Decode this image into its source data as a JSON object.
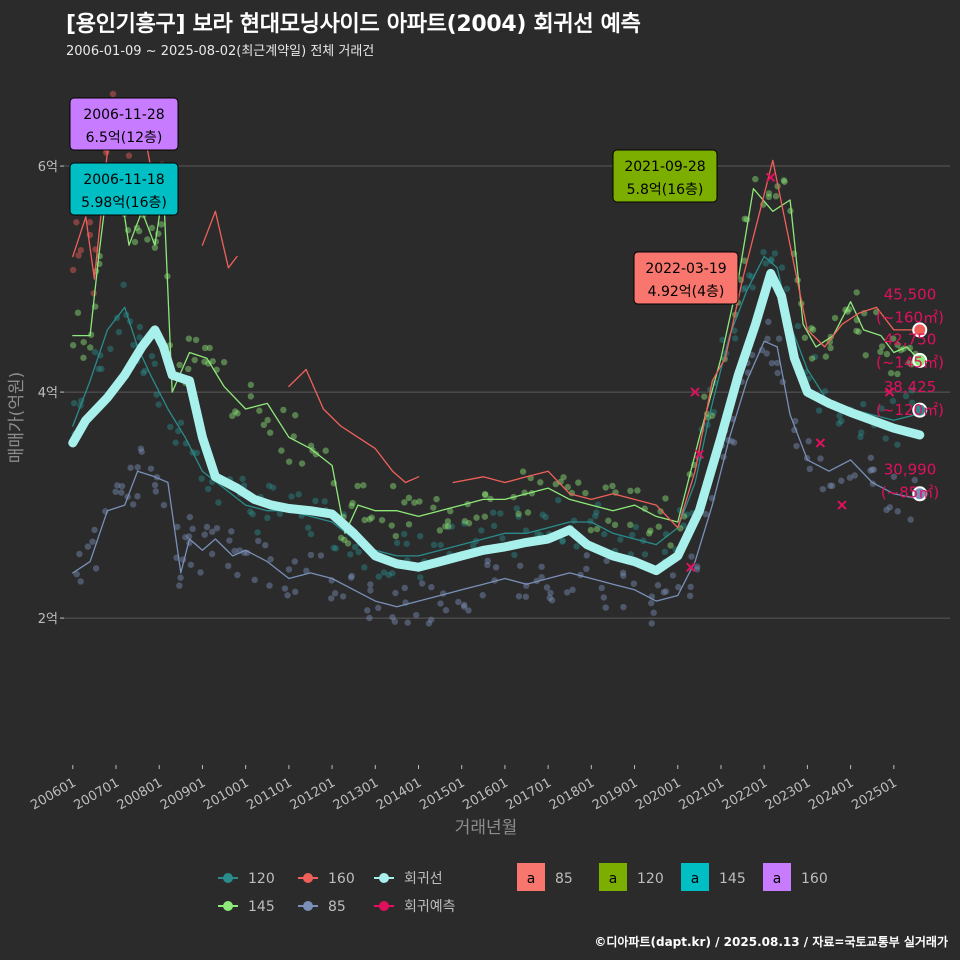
{
  "header": {
    "title": "[용인기흥구] 보라 현대모닝사이드 아파트(2004) 회귀선 예측",
    "subtitle": "2006-01-09 ~ 2025-08-02(최근계약일) 전체 거래건"
  },
  "footer": {
    "credit": "©디아파트(dapt.kr) / 2025.08.13 / 자료=국토교통부 실거래가"
  },
  "colors": {
    "background": "#2b2b2b",
    "grid": "#5a5a5a",
    "s120": "#2a8c8c",
    "s145": "#8ee87a",
    "s160": "#f0605a",
    "s85": "#7a90b8",
    "regression": "#a8f0ec",
    "forecast": "#e0105e"
  },
  "chart_data": {
    "type": "line",
    "xlabel": "거래년월",
    "ylabel": "매매가(억원)",
    "x_ticks": [
      "200601",
      "200701",
      "200801",
      "200901",
      "201001",
      "201101",
      "201201",
      "201301",
      "201401",
      "201501",
      "201601",
      "201701",
      "201801",
      "201901",
      "202001",
      "202101",
      "202201",
      "202301",
      "202401",
      "202501"
    ],
    "y_ticks": [
      {
        "value": 2,
        "label": "2억"
      },
      {
        "value": 4,
        "label": "4억"
      },
      {
        "value": 6,
        "label": "6억"
      }
    ],
    "xlim": [
      2005.75,
      2026.3
    ],
    "ylim": [
      0.7,
      6.85
    ],
    "grid": true,
    "series": [
      {
        "name": "120",
        "color": "#2a8c8c",
        "width": 1.3,
        "points": [
          [
            2006.0,
            3.7
          ],
          [
            2006.4,
            4.1
          ],
          [
            2006.8,
            4.55
          ],
          [
            2007.2,
            4.75
          ],
          [
            2007.5,
            4.4
          ],
          [
            2007.8,
            4.15
          ],
          [
            2008.2,
            3.85
          ],
          [
            2008.6,
            3.6
          ],
          [
            2009.0,
            3.3
          ],
          [
            2009.5,
            3.15
          ],
          [
            2010.0,
            3.0
          ],
          [
            2010.5,
            2.95
          ],
          [
            2011.0,
            2.95
          ],
          [
            2011.5,
            2.9
          ],
          [
            2012.0,
            2.85
          ],
          [
            2012.5,
            2.7
          ],
          [
            2013.0,
            2.6
          ],
          [
            2013.5,
            2.55
          ],
          [
            2014.0,
            2.55
          ],
          [
            2014.5,
            2.6
          ],
          [
            2015.0,
            2.65
          ],
          [
            2015.5,
            2.7
          ],
          [
            2016.0,
            2.75
          ],
          [
            2016.5,
            2.75
          ],
          [
            2017.0,
            2.8
          ],
          [
            2017.5,
            2.85
          ],
          [
            2018.0,
            2.85
          ],
          [
            2018.5,
            2.75
          ],
          [
            2019.0,
            2.7
          ],
          [
            2019.5,
            2.65
          ],
          [
            2020.0,
            2.8
          ],
          [
            2020.4,
            3.2
          ],
          [
            2020.8,
            3.9
          ],
          [
            2021.2,
            4.5
          ],
          [
            2021.6,
            4.9
          ],
          [
            2022.0,
            5.2
          ],
          [
            2022.3,
            5.1
          ],
          [
            2022.6,
            4.6
          ],
          [
            2023.0,
            4.2
          ],
          [
            2023.5,
            3.9
          ],
          [
            2024.0,
            3.85
          ],
          [
            2024.5,
            3.8
          ],
          [
            2025.0,
            3.75
          ],
          [
            2025.5,
            3.8
          ]
        ]
      },
      {
        "name": "145",
        "color": "#8ee87a",
        "width": 1.3,
        "points": [
          [
            2006.0,
            4.5
          ],
          [
            2006.4,
            4.5
          ],
          [
            2006.6,
            5.2
          ],
          [
            2006.85,
            5.98
          ],
          [
            2007.1,
            5.8
          ],
          [
            2007.3,
            5.3
          ],
          [
            2007.6,
            5.6
          ],
          [
            2007.9,
            5.3
          ],
          [
            2008.1,
            5.8
          ],
          [
            2008.3,
            4.0
          ],
          [
            2008.7,
            4.35
          ],
          [
            2009.1,
            4.3
          ],
          [
            2009.5,
            4.05
          ],
          [
            2010.0,
            3.85
          ],
          [
            2010.5,
            3.9
          ],
          [
            2011.0,
            3.6
          ],
          [
            2011.5,
            3.5
          ],
          [
            2012.0,
            3.35
          ],
          [
            2012.3,
            2.75
          ],
          [
            2012.6,
            3.0
          ],
          [
            2013.0,
            2.95
          ],
          [
            2013.5,
            2.95
          ],
          [
            2014.0,
            2.9
          ],
          [
            2014.5,
            2.95
          ],
          [
            2015.0,
            3.0
          ],
          [
            2015.5,
            3.05
          ],
          [
            2016.0,
            3.05
          ],
          [
            2016.5,
            3.1
          ],
          [
            2017.0,
            3.15
          ],
          [
            2017.5,
            3.05
          ],
          [
            2018.0,
            3.0
          ],
          [
            2018.5,
            2.95
          ],
          [
            2019.0,
            3.0
          ],
          [
            2019.5,
            2.9
          ],
          [
            2020.0,
            2.85
          ],
          [
            2020.5,
            3.6
          ],
          [
            2021.0,
            4.3
          ],
          [
            2021.4,
            5.0
          ],
          [
            2021.75,
            5.8
          ],
          [
            2022.2,
            5.6
          ],
          [
            2022.6,
            5.7
          ],
          [
            2022.9,
            4.6
          ],
          [
            2023.2,
            4.4
          ],
          [
            2023.6,
            4.5
          ],
          [
            2024.0,
            4.8
          ],
          [
            2024.3,
            4.55
          ],
          [
            2024.7,
            4.5
          ],
          [
            2025.0,
            4.35
          ],
          [
            2025.3,
            4.4
          ],
          [
            2025.6,
            4.28
          ]
        ]
      },
      {
        "name": "160",
        "color": "#f0605a",
        "width": 1.3,
        "points": [
          [
            2006.0,
            5.2
          ],
          [
            2006.3,
            5.55
          ],
          [
            2006.5,
            5.0
          ],
          [
            2006.9,
            6.5
          ],
          [
            2007.2,
            6.2
          ],
          [
            2007.6,
            6.4
          ],
          [
            2007.9,
            5.8
          ],
          [
            2008.1,
            6.0
          ],
          [
            2008.25,
            6.0
          ]
        ],
        "points2": [
          [
            2009.0,
            5.3
          ],
          [
            2009.3,
            5.6
          ],
          [
            2009.6,
            5.1
          ],
          [
            2009.8,
            5.2
          ]
        ],
        "points3": [
          [
            2011.0,
            4.05
          ],
          [
            2011.4,
            4.2
          ],
          [
            2011.8,
            3.85
          ],
          [
            2012.2,
            3.7
          ],
          [
            2012.6,
            3.6
          ],
          [
            2013.0,
            3.5
          ],
          [
            2013.4,
            3.3
          ],
          [
            2013.7,
            3.2
          ],
          [
            2014.0,
            3.25
          ]
        ],
        "points4": [
          [
            2014.8,
            3.2
          ],
          [
            2015.5,
            3.25
          ],
          [
            2016.0,
            3.2
          ],
          [
            2016.5,
            3.25
          ],
          [
            2017.0,
            3.3
          ],
          [
            2017.5,
            3.1
          ],
          [
            2018.0,
            3.05
          ],
          [
            2018.5,
            3.1
          ],
          [
            2019.0,
            3.05
          ],
          [
            2019.5,
            3.0
          ],
          [
            2020.0,
            2.8
          ],
          [
            2020.4,
            3.3
          ],
          [
            2020.8,
            4.1
          ],
          [
            2021.1,
            4.3
          ],
          [
            2021.5,
            5.0
          ],
          [
            2021.9,
            5.6
          ],
          [
            2022.2,
            6.05
          ],
          [
            2022.6,
            5.3
          ],
          [
            2023.0,
            4.55
          ],
          [
            2023.4,
            4.4
          ],
          [
            2023.8,
            4.6
          ],
          [
            2024.2,
            4.7
          ],
          [
            2024.6,
            4.75
          ],
          [
            2025.0,
            4.55
          ],
          [
            2025.6,
            4.55
          ]
        ]
      },
      {
        "name": "85",
        "color": "#7a90b8",
        "width": 1.3,
        "points": [
          [
            2006.0,
            2.4
          ],
          [
            2006.4,
            2.5
          ],
          [
            2006.8,
            2.95
          ],
          [
            2007.2,
            3.0
          ],
          [
            2007.5,
            3.3
          ],
          [
            2007.9,
            3.25
          ],
          [
            2008.2,
            3.2
          ],
          [
            2008.5,
            2.4
          ],
          [
            2008.7,
            2.7
          ],
          [
            2009.0,
            2.6
          ],
          [
            2009.3,
            2.7
          ],
          [
            2009.7,
            2.55
          ],
          [
            2010.0,
            2.6
          ],
          [
            2010.5,
            2.5
          ],
          [
            2011.0,
            2.35
          ],
          [
            2011.5,
            2.4
          ],
          [
            2012.0,
            2.35
          ],
          [
            2012.5,
            2.25
          ],
          [
            2013.0,
            2.15
          ],
          [
            2013.5,
            2.1
          ],
          [
            2014.0,
            2.15
          ],
          [
            2014.5,
            2.2
          ],
          [
            2015.0,
            2.25
          ],
          [
            2015.5,
            2.3
          ],
          [
            2016.0,
            2.35
          ],
          [
            2016.5,
            2.3
          ],
          [
            2017.0,
            2.35
          ],
          [
            2017.5,
            2.4
          ],
          [
            2018.0,
            2.35
          ],
          [
            2018.5,
            2.3
          ],
          [
            2019.0,
            2.25
          ],
          [
            2019.5,
            2.15
          ],
          [
            2020.0,
            2.2
          ],
          [
            2020.4,
            2.5
          ],
          [
            2020.8,
            3.0
          ],
          [
            2021.2,
            3.6
          ],
          [
            2021.6,
            4.1
          ],
          [
            2022.0,
            4.45
          ],
          [
            2022.3,
            4.4
          ],
          [
            2022.6,
            3.8
          ],
          [
            2023.0,
            3.4
          ],
          [
            2023.5,
            3.3
          ],
          [
            2024.0,
            3.4
          ],
          [
            2024.5,
            3.2
          ],
          [
            2025.0,
            3.1
          ],
          [
            2025.5,
            3.06
          ]
        ]
      },
      {
        "name": "회귀선",
        "color": "#a8f0ec",
        "width": 9,
        "points": [
          [
            2006.0,
            3.55
          ],
          [
            2006.3,
            3.75
          ],
          [
            2006.8,
            3.95
          ],
          [
            2007.2,
            4.15
          ],
          [
            2007.6,
            4.4
          ],
          [
            2007.9,
            4.55
          ],
          [
            2008.1,
            4.4
          ],
          [
            2008.3,
            4.15
          ],
          [
            2008.7,
            4.1
          ],
          [
            2009.0,
            3.6
          ],
          [
            2009.3,
            3.25
          ],
          [
            2009.8,
            3.15
          ],
          [
            2010.2,
            3.05
          ],
          [
            2010.6,
            3.0
          ],
          [
            2011.0,
            2.97
          ],
          [
            2011.5,
            2.95
          ],
          [
            2012.0,
            2.92
          ],
          [
            2012.5,
            2.75
          ],
          [
            2013.0,
            2.55
          ],
          [
            2013.5,
            2.48
          ],
          [
            2014.0,
            2.45
          ],
          [
            2014.5,
            2.5
          ],
          [
            2015.0,
            2.55
          ],
          [
            2015.5,
            2.6
          ],
          [
            2016.0,
            2.63
          ],
          [
            2016.5,
            2.67
          ],
          [
            2017.0,
            2.7
          ],
          [
            2017.5,
            2.78
          ],
          [
            2017.9,
            2.65
          ],
          [
            2018.5,
            2.55
          ],
          [
            2019.0,
            2.5
          ],
          [
            2019.5,
            2.42
          ],
          [
            2020.0,
            2.55
          ],
          [
            2020.5,
            2.95
          ],
          [
            2021.0,
            3.6
          ],
          [
            2021.4,
            4.15
          ],
          [
            2021.8,
            4.6
          ],
          [
            2022.15,
            5.05
          ],
          [
            2022.4,
            4.85
          ],
          [
            2022.7,
            4.3
          ],
          [
            2023.0,
            4.0
          ],
          [
            2023.5,
            3.9
          ],
          [
            2024.0,
            3.82
          ],
          [
            2024.5,
            3.75
          ],
          [
            2025.0,
            3.68
          ],
          [
            2025.6,
            3.62
          ]
        ]
      }
    ],
    "forecast_points": [
      {
        "series": "160",
        "date": "2025-08",
        "value": 4.55,
        "label": "45,500",
        "sub": "(~160㎡)",
        "color": "#f0605a"
      },
      {
        "series": "145",
        "date": "2025-08",
        "value": 4.28,
        "label": "42,750",
        "sub": "(~145㎡)",
        "color": "#8ee87a"
      },
      {
        "series": "120",
        "date": "2025-08",
        "value": 3.84,
        "label": "38,425",
        "sub": "(~120㎡)",
        "color": "#2a8c8c"
      },
      {
        "series": "85",
        "date": "2025-08",
        "value": 3.1,
        "label": "30,990",
        "sub": "(~85㎡)",
        "color": "#7a90b8"
      }
    ],
    "max_callouts": [
      {
        "date": "2006-11-28",
        "price": "6.5억(12층)",
        "color": "#c77cff",
        "x": 2006.9,
        "y": 6.5
      },
      {
        "date": "2006-11-18",
        "price": "5.98억(16층)",
        "color": "#00bfc4",
        "x": 2006.88,
        "y": 5.98
      },
      {
        "date": "2021-09-28",
        "price": "5.8억(16층)",
        "color": "#7cae00",
        "x": 2021.74,
        "y": 5.8
      },
      {
        "date": "2022-03-19",
        "price": "4.92억(4층)",
        "color": "#f8766d",
        "x": 2022.21,
        "y": 4.92
      }
    ],
    "legend": {
      "lines": [
        {
          "label": "120",
          "color": "#2a8c8c"
        },
        {
          "label": "160",
          "color": "#f0605a"
        },
        {
          "label": "회귀선",
          "color": "#a8f0ec"
        },
        {
          "label": "145",
          "color": "#8ee87a"
        },
        {
          "label": "85",
          "color": "#7a90b8"
        },
        {
          "label": "회귀예측",
          "color": "#e0105e"
        }
      ],
      "labels": [
        {
          "glyph": "a",
          "label": "85",
          "color": "#f8766d"
        },
        {
          "glyph": "a",
          "label": "120",
          "color": "#7cae00"
        },
        {
          "glyph": "a",
          "label": "145",
          "color": "#00bfc4"
        },
        {
          "glyph": "a",
          "label": "160",
          "color": "#c77cff"
        }
      ]
    }
  }
}
